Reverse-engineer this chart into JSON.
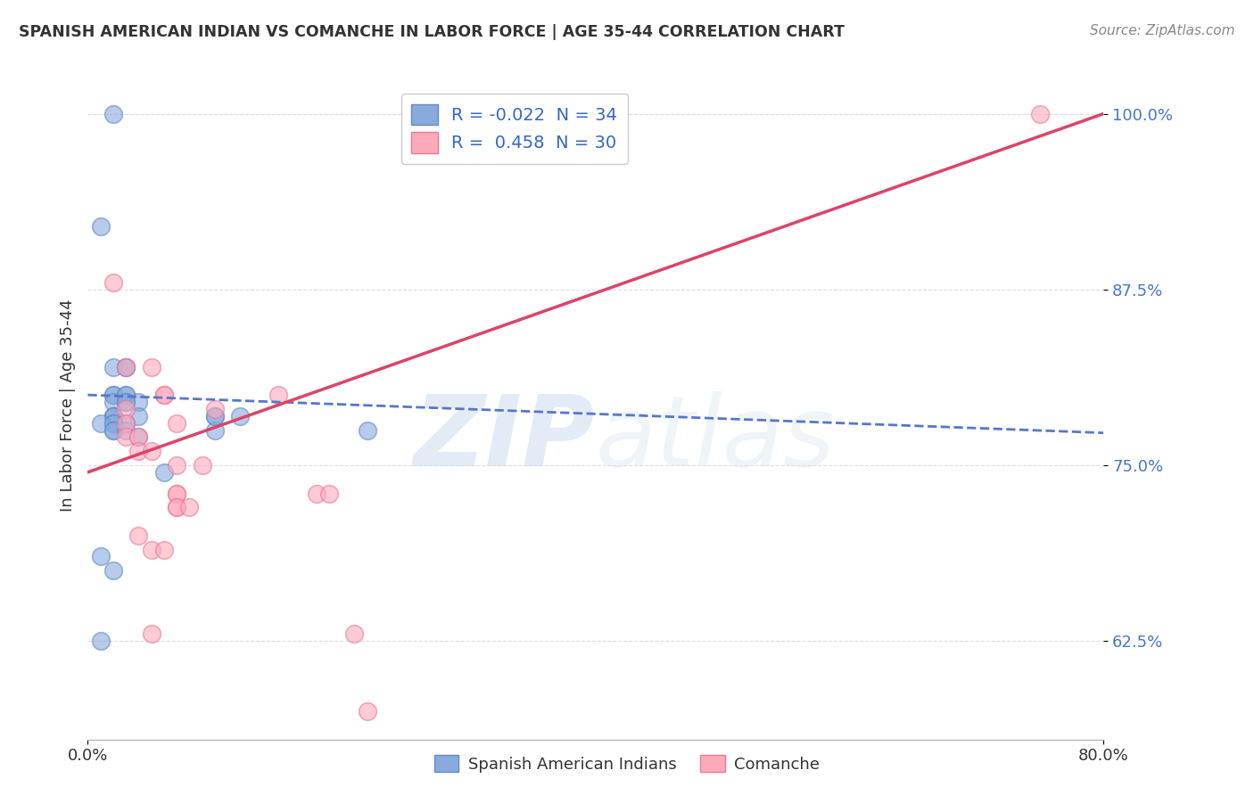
{
  "title": "SPANISH AMERICAN INDIAN VS COMANCHE IN LABOR FORCE | AGE 35-44 CORRELATION CHART",
  "source": "Source: ZipAtlas.com",
  "ylabel": "In Labor Force | Age 35-44",
  "xlim": [
    0.0,
    0.8
  ],
  "ylim": [
    0.555,
    1.03
  ],
  "xtick_positions": [
    0.0,
    0.8
  ],
  "xticklabels": [
    "0.0%",
    "80.0%"
  ],
  "ytick_positions": [
    0.625,
    0.75,
    0.875,
    1.0
  ],
  "yticklabels": [
    "62.5%",
    "75.0%",
    "87.5%",
    "100.0%"
  ],
  "blue_R": -0.022,
  "blue_N": 34,
  "pink_R": 0.458,
  "pink_N": 30,
  "blue_color": "#88AADD",
  "blue_edge_color": "#6688CC",
  "pink_color": "#FFAABB",
  "pink_edge_color": "#EE7799",
  "blue_label": "Spanish American Indians",
  "pink_label": "Comanche",
  "watermark_zip": "ZIP",
  "watermark_atlas": "atlas",
  "blue_scatter_x": [
    0.02,
    0.01,
    0.02,
    0.03,
    0.03,
    0.02,
    0.02,
    0.03,
    0.03,
    0.02,
    0.03,
    0.04,
    0.03,
    0.04,
    0.02,
    0.02,
    0.02,
    0.03,
    0.02,
    0.01,
    0.02,
    0.02,
    0.02,
    0.03,
    0.04,
    0.1,
    0.1,
    0.12,
    0.01,
    0.02,
    0.22,
    0.01,
    0.1,
    0.06
  ],
  "blue_scatter_y": [
    1.0,
    0.92,
    0.82,
    0.82,
    0.82,
    0.8,
    0.8,
    0.8,
    0.8,
    0.795,
    0.795,
    0.795,
    0.795,
    0.785,
    0.785,
    0.785,
    0.785,
    0.78,
    0.78,
    0.78,
    0.78,
    0.775,
    0.775,
    0.775,
    0.77,
    0.785,
    0.775,
    0.785,
    0.685,
    0.675,
    0.775,
    0.625,
    0.785,
    0.745
  ],
  "pink_scatter_x": [
    0.75,
    0.02,
    0.03,
    0.05,
    0.06,
    0.06,
    0.03,
    0.03,
    0.07,
    0.1,
    0.15,
    0.03,
    0.04,
    0.04,
    0.05,
    0.07,
    0.09,
    0.07,
    0.07,
    0.07,
    0.07,
    0.08,
    0.04,
    0.05,
    0.18,
    0.19,
    0.05,
    0.21,
    0.22,
    0.06
  ],
  "pink_scatter_y": [
    1.0,
    0.88,
    0.82,
    0.82,
    0.8,
    0.8,
    0.79,
    0.78,
    0.78,
    0.79,
    0.8,
    0.77,
    0.77,
    0.76,
    0.76,
    0.75,
    0.75,
    0.73,
    0.73,
    0.72,
    0.72,
    0.72,
    0.7,
    0.69,
    0.73,
    0.73,
    0.63,
    0.63,
    0.575,
    0.69
  ],
  "blue_line_x0": 0.0,
  "blue_line_x1": 0.8,
  "blue_line_y0": 0.8,
  "blue_line_y1": 0.773,
  "pink_line_x0": 0.0,
  "pink_line_x1": 0.8,
  "pink_line_y0": 0.745,
  "pink_line_y1": 1.0,
  "legend_box_color": "#AABBDD",
  "legend_text_color": "#3366CC",
  "grid_color": "#DDDDDD",
  "ytick_color": "#4477CC",
  "xtick_color": "#333333"
}
